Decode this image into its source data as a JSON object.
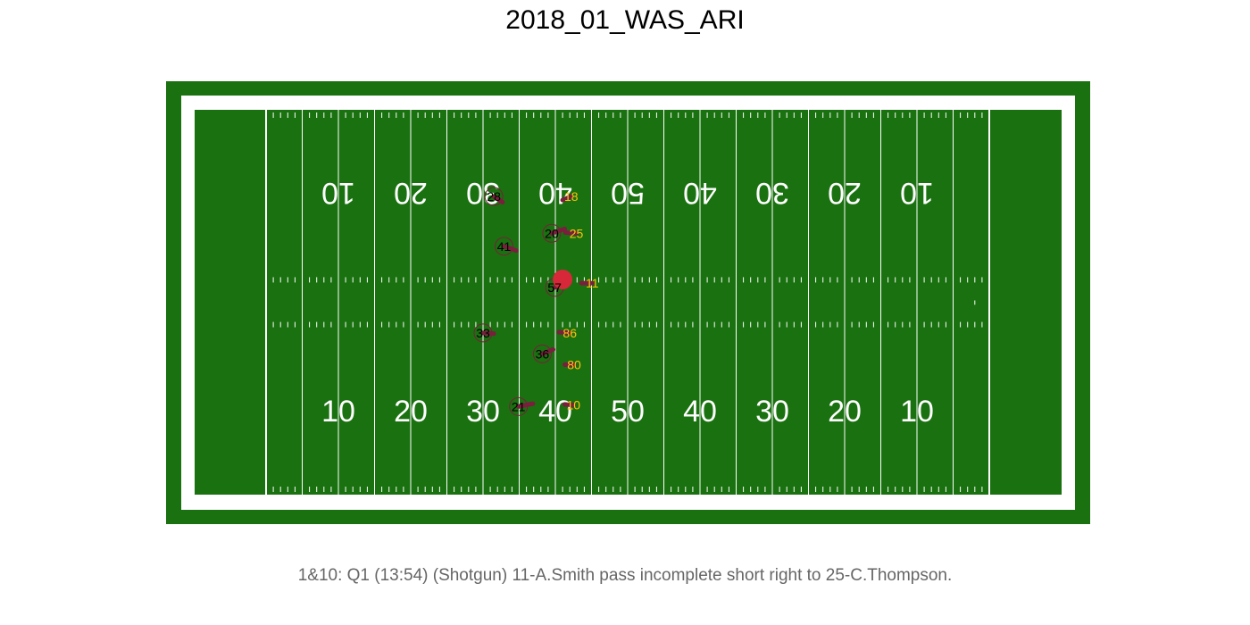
{
  "title": "2018_01_WAS_ARI",
  "caption": "1&10: Q1 (13:54) (Shotgun) 11-A.Smith pass incomplete short right to 25-C.Thompson.",
  "colors": {
    "grass": "#1a7110",
    "lines": "#ffffff",
    "defense_marker": "#7a1f3d",
    "football": "#d62839",
    "offense_label": "#ffc20e",
    "defense_label": "#000000"
  },
  "yard_numbers": [
    "10",
    "20",
    "30",
    "40",
    "50",
    "40",
    "30",
    "20",
    "10"
  ],
  "players": [
    {
      "number": "28",
      "team": "defense",
      "x": 31.5,
      "y": 41.3,
      "dx": 1.2,
      "dy": -0.8
    },
    {
      "number": "18",
      "team": "offense",
      "x": 42.2,
      "y": 41.3,
      "dx": -1.2,
      "dy": -0.5
    },
    {
      "number": "20",
      "team": "defense",
      "x": 39.5,
      "y": 36.2,
      "dx": 1.8,
      "dy": 0.6
    },
    {
      "number": "25",
      "team": "offense",
      "x": 42.9,
      "y": 36.2,
      "dx": -1.5,
      "dy": 0.1
    },
    {
      "number": "41",
      "team": "defense",
      "x": 32.9,
      "y": 34.4,
      "dx": 1.7,
      "dy": -0.6
    },
    {
      "number": "57",
      "team": "defense",
      "x": 39.9,
      "y": 28.7,
      "dx": 1.2,
      "dy": 0.4
    },
    {
      "number": "11",
      "team": "offense",
      "x": 45.1,
      "y": 29.3,
      "dx": -1.5,
      "dy": 0
    },
    {
      "number": "33",
      "team": "defense",
      "x": 30.0,
      "y": 22.4,
      "dx": 1.5,
      "dy": -0.1
    },
    {
      "number": "86",
      "team": "offense",
      "x": 42.0,
      "y": 22.4,
      "dx": -1.5,
      "dy": 0.1
    },
    {
      "number": "36",
      "team": "defense",
      "x": 38.2,
      "y": 19.5,
      "dx": 1.5,
      "dy": 0.6
    },
    {
      "number": "80",
      "team": "offense",
      "x": 42.6,
      "y": 18.0,
      "dx": -1.3,
      "dy": 0
    },
    {
      "number": "21",
      "team": "defense",
      "x": 34.9,
      "y": 12.2,
      "dx": 2.0,
      "dy": 0.4
    },
    {
      "number": "10",
      "team": "offense",
      "x": 42.5,
      "y": 12.4,
      "dx": -1.2,
      "dy": 0.1
    }
  ],
  "football": {
    "x": 41.0,
    "y": 29.8
  }
}
